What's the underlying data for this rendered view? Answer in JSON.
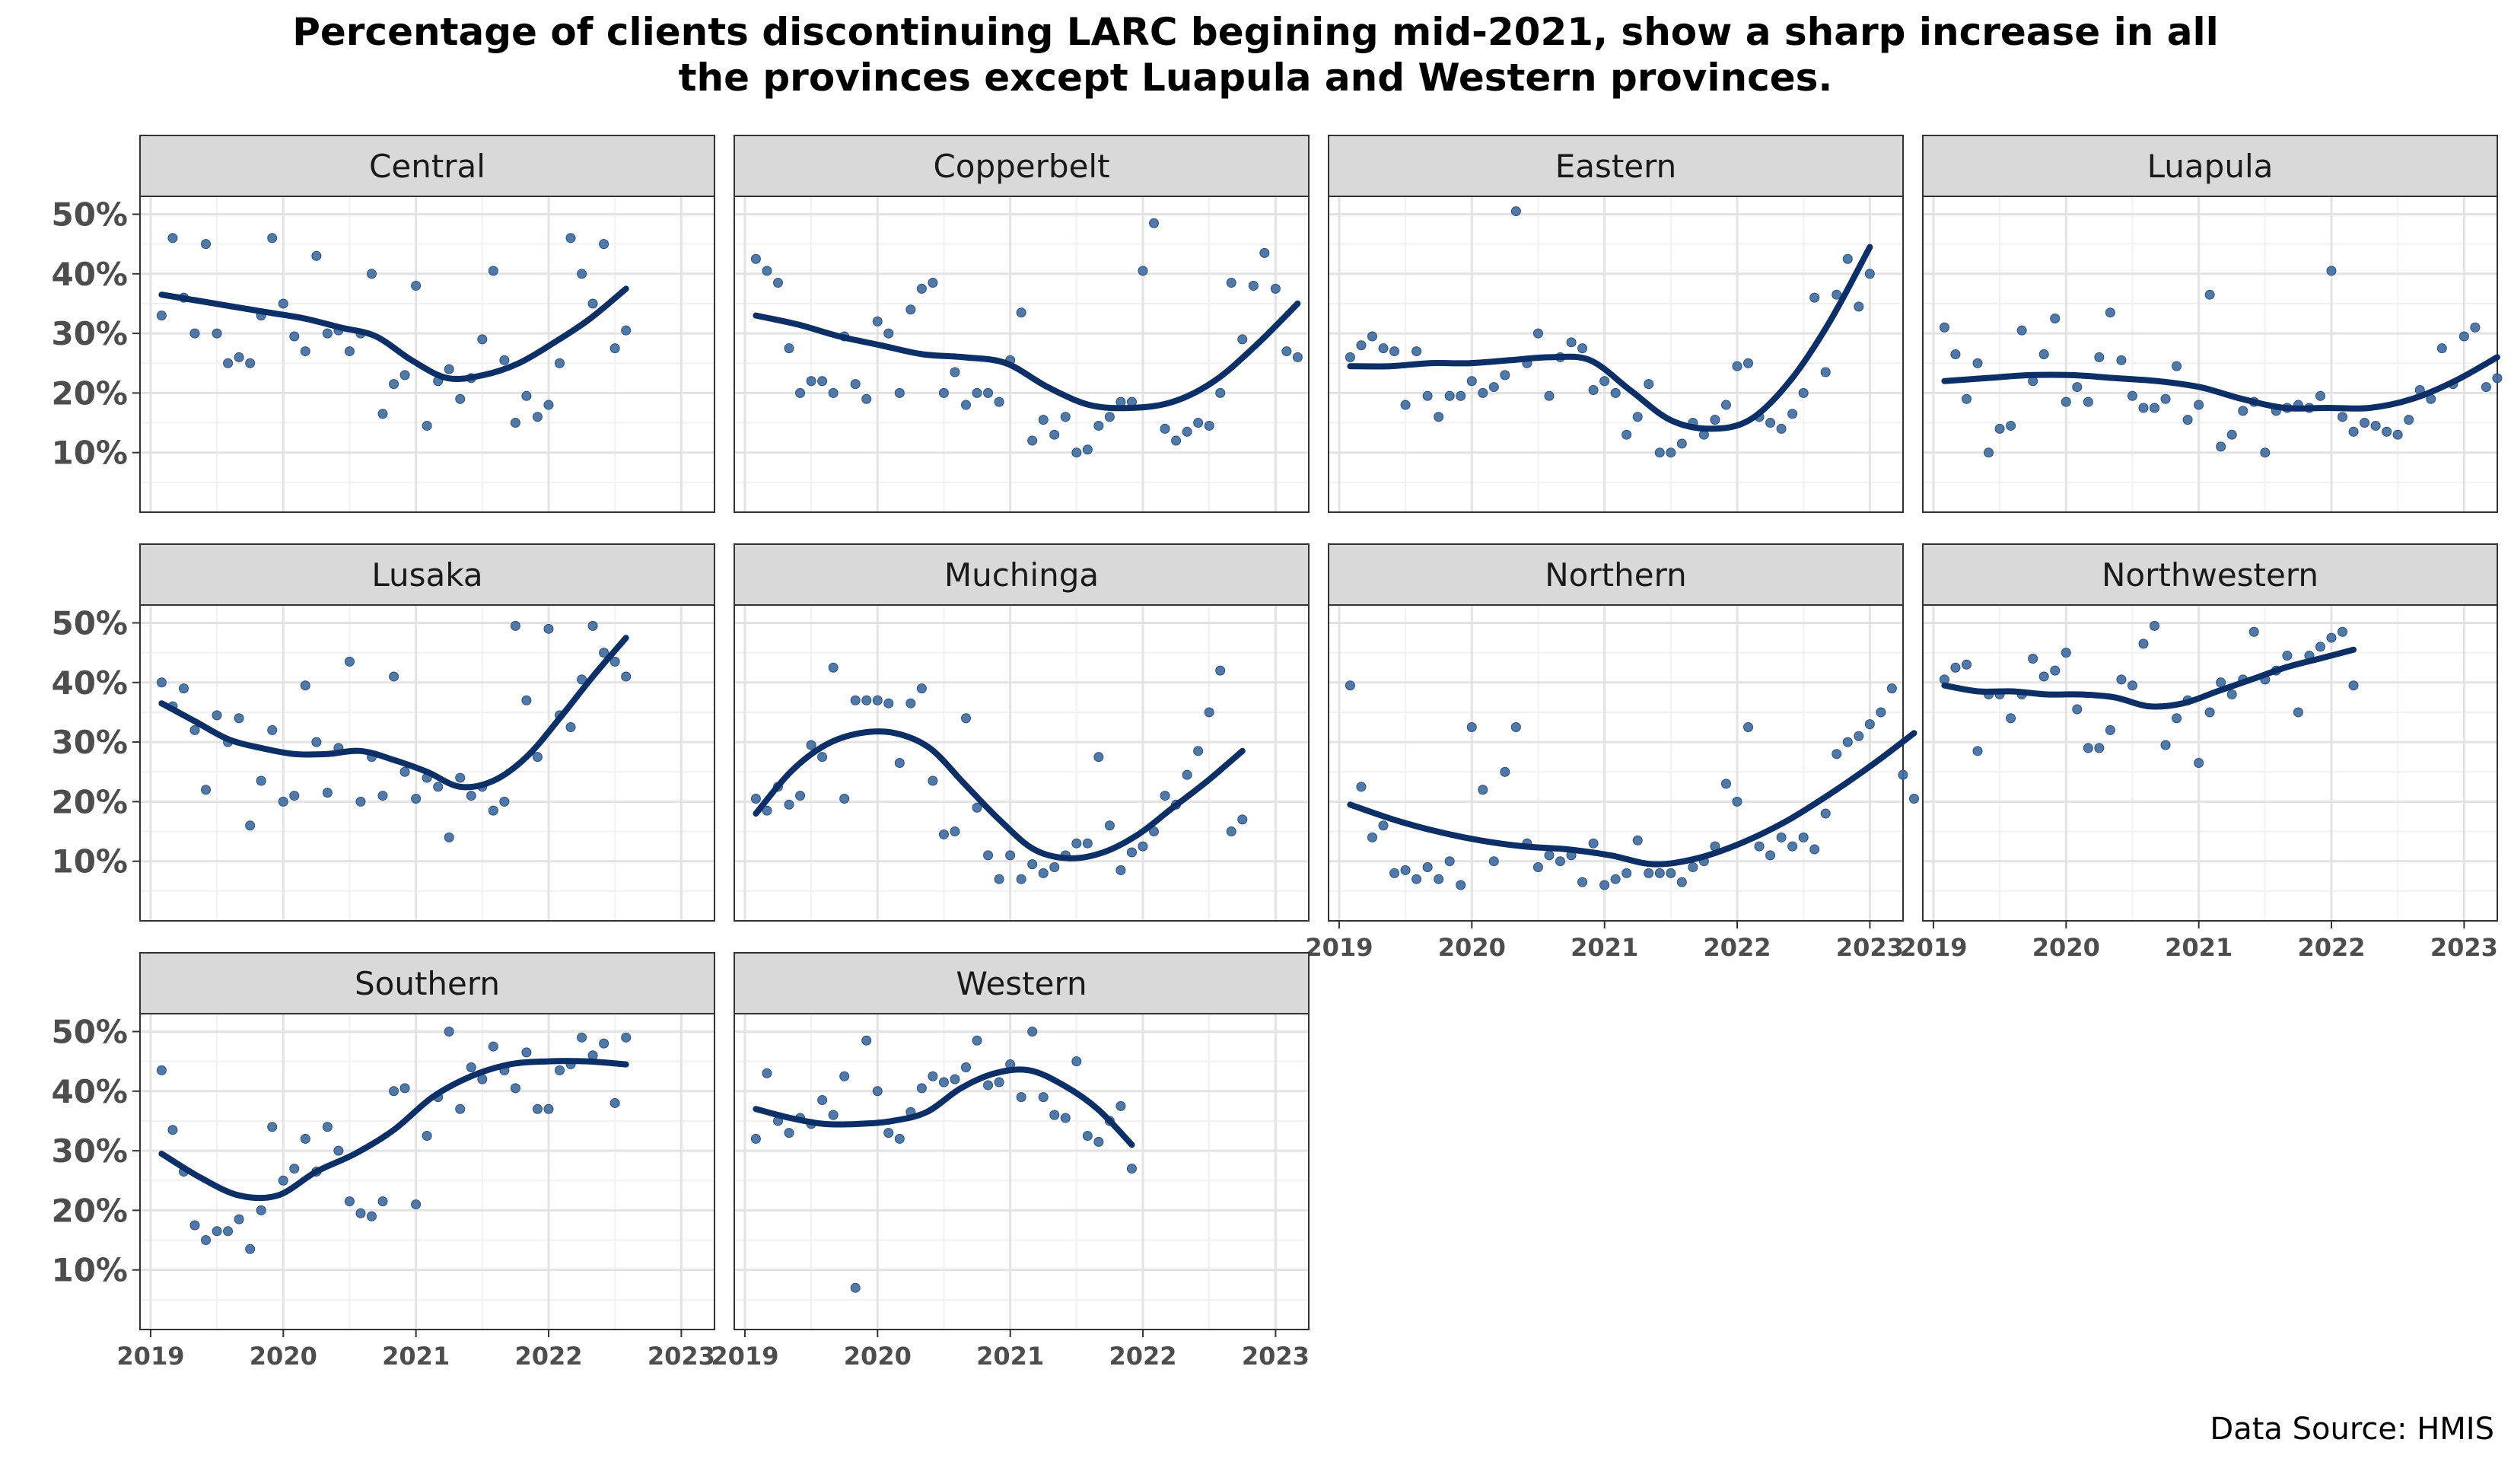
{
  "chart_data": {
    "type": "scatter",
    "title_line1": "Percentage of clients discontinuing LARC begining mid-2021, show a sharp increase in all",
    "title_line2": "the provinces except Luapula and  Western provinces.",
    "caption": "Data Source: HMIS",
    "xlabel": "",
    "ylabel": "",
    "x_ticks": [
      "2019",
      "2020",
      "2021",
      "2022",
      "2023"
    ],
    "y_ticks": [
      "10%",
      "20%",
      "30%",
      "40%",
      "50%"
    ],
    "xlim": [
      2018.92,
      2023.25
    ],
    "ylim": [
      0,
      53
    ],
    "grid": true,
    "panels": [
      {
        "name": "Central",
        "points": [
          33,
          46,
          36,
          30,
          45,
          30,
          25,
          26,
          25,
          33,
          46,
          35,
          29.5,
          27,
          43,
          30,
          30.5,
          27,
          30,
          40,
          16.5,
          21.5,
          23,
          38,
          14.5,
          22,
          24,
          19,
          22.5,
          29,
          40.5,
          25.5,
          15,
          19.5,
          16,
          18,
          25,
          46,
          40,
          35,
          45,
          27.5,
          30.5
        ],
        "trend": [
          36.5,
          35.5,
          34.5,
          33.5,
          32.5,
          31,
          29.5,
          25.5,
          22.5,
          23,
          25,
          28.5,
          32.5,
          37.5
        ]
      },
      {
        "name": "Copperbelt",
        "points": [
          42.5,
          40.5,
          38.5,
          27.5,
          20,
          22,
          22,
          20,
          29.5,
          21.5,
          19,
          32,
          30,
          20,
          34,
          37.5,
          38.5,
          20,
          23.5,
          18,
          20,
          20,
          18.5,
          25.5,
          33.5,
          12,
          15.5,
          13,
          16,
          10,
          10.5,
          14.5,
          16,
          18.5,
          18.5,
          40.5,
          48.5,
          14,
          12,
          13.5,
          15,
          14.5,
          20,
          38.5,
          29,
          38,
          43.5,
          37.5,
          27,
          26
        ],
        "trend": [
          33,
          31.5,
          29.5,
          28,
          26.5,
          26,
          25,
          21,
          18,
          17.5,
          18.5,
          22,
          28,
          35
        ]
      },
      {
        "name": "Eastern",
        "points": [
          26,
          28,
          29.5,
          27.5,
          27,
          18,
          27,
          19.5,
          16,
          19.5,
          19.5,
          22,
          20,
          21,
          23,
          50.5,
          25,
          30,
          19.5,
          26,
          28.5,
          27.5,
          20.5,
          22,
          20,
          13,
          16,
          21.5,
          10,
          10,
          11.5,
          15,
          13,
          15.5,
          18,
          24.5,
          25,
          16,
          15,
          14,
          16.5,
          20,
          36,
          23.5,
          36.5,
          42.5,
          34.5,
          40
        ],
        "trend": [
          24.5,
          24.5,
          25,
          25,
          25.5,
          26,
          25.5,
          20.5,
          15.5,
          14,
          15.5,
          22,
          32,
          44.5
        ]
      },
      {
        "name": "Luapula",
        "points": [
          31,
          26.5,
          19,
          25,
          10,
          14,
          14.5,
          30.5,
          22,
          26.5,
          32.5,
          18.5,
          21,
          18.5,
          26,
          33.5,
          25.5,
          19.5,
          17.5,
          17.5,
          19,
          24.5,
          15.5,
          18,
          36.5,
          11,
          13,
          17,
          18.5,
          10,
          17,
          17.5,
          18,
          17.5,
          19.5,
          40.5,
          16,
          13.5,
          15,
          14.5,
          13.5,
          13,
          15.5,
          20.5,
          19,
          27.5,
          21.5,
          29.5,
          31,
          21,
          22.5
        ],
        "trend": [
          22,
          22.5,
          23,
          23,
          22.5,
          22,
          21,
          19,
          17.5,
          17.5,
          17.5,
          19,
          22,
          26
        ]
      },
      {
        "name": "Lusaka",
        "points": [
          40,
          36,
          39,
          32,
          22,
          34.5,
          30,
          34,
          16,
          23.5,
          32,
          20,
          21,
          39.5,
          30,
          21.5,
          29,
          43.5,
          20,
          27.5,
          21,
          41,
          25,
          20.5,
          24,
          22.5,
          14,
          24,
          21,
          22.5,
          18.5,
          20,
          49.5,
          37,
          27.5,
          49,
          34.5,
          32.5,
          40.5,
          49.5,
          45,
          43.5,
          41
        ],
        "trend": [
          36.5,
          33.5,
          30.5,
          29,
          28,
          28,
          28.5,
          27,
          25,
          22.5,
          23.5,
          27.5,
          34,
          41,
          47.5
        ]
      },
      {
        "name": "Muchinga",
        "points": [
          20.5,
          18.5,
          22.5,
          19.5,
          21,
          29.5,
          27.5,
          42.5,
          20.5,
          37,
          37,
          37,
          36.5,
          26.5,
          36.5,
          39,
          23.5,
          14.5,
          15,
          34,
          19,
          11,
          7,
          11,
          7,
          9.5,
          8,
          9,
          11,
          13,
          13,
          27.5,
          16,
          8.5,
          11.5,
          12.5,
          15,
          21,
          19.5,
          24.5,
          28.5,
          35,
          42,
          15,
          17
        ],
        "trend": [
          18,
          25,
          29.5,
          31.5,
          31.5,
          29,
          23,
          17,
          12,
          10.5,
          11.5,
          14.5,
          19,
          23.5,
          28.5
        ]
      },
      {
        "name": "Northern",
        "points": [
          39.5,
          22.5,
          14,
          16,
          8,
          8.5,
          7,
          9,
          7,
          10,
          6,
          32.5,
          22,
          10,
          25,
          32.5,
          13,
          9,
          11,
          10,
          11,
          6.5,
          13,
          6,
          7,
          8,
          13.5,
          8,
          8,
          8,
          6.5,
          9,
          10,
          12.5,
          23,
          20,
          32.5,
          12.5,
          11,
          14,
          12.5,
          14,
          12,
          18,
          28,
          30,
          31,
          33,
          35,
          39,
          24.5,
          20.5
        ],
        "trend": [
          19.5,
          17,
          15,
          13.5,
          12.5,
          12,
          11,
          9.5,
          10.5,
          13,
          16.5,
          21,
          26,
          31.5
        ]
      },
      {
        "name": "Northwestern",
        "points": [
          40.5,
          42.5,
          43,
          28.5,
          38,
          38,
          34,
          38,
          44,
          41,
          42,
          45,
          35.5,
          29,
          29,
          32,
          40.5,
          39.5,
          46.5,
          49.5,
          29.5,
          34,
          37,
          26.5,
          35,
          40,
          38,
          40.5,
          48.5,
          40.5,
          42,
          44.5,
          35,
          44.5,
          46,
          47.5,
          48.5,
          39.5
        ],
        "trend": [
          39.5,
          38.5,
          38.5,
          38,
          38,
          37.5,
          36,
          36.5,
          38.5,
          40.5,
          42.5,
          44,
          45.5
        ]
      },
      {
        "name": "Southern",
        "points": [
          43.5,
          33.5,
          26.5,
          17.5,
          15,
          16.5,
          16.5,
          18.5,
          13.5,
          20,
          34,
          25,
          27,
          32,
          26.5,
          34,
          30,
          21.5,
          19.5,
          19,
          21.5,
          40,
          40.5,
          21,
          32.5,
          39,
          50,
          37,
          44,
          42,
          47.5,
          43.5,
          40.5,
          46.5,
          37,
          37,
          43.5,
          44.5,
          49,
          46,
          48,
          38,
          49
        ],
        "trend": [
          29.5,
          25.5,
          22.5,
          22.5,
          26.5,
          29.5,
          33.5,
          39,
          42.5,
          44.5,
          45,
          45,
          44.5
        ]
      },
      {
        "name": "Western",
        "points": [
          32,
          43,
          35,
          33,
          35.5,
          34.5,
          38.5,
          36,
          42.5,
          7,
          48.5,
          40,
          33,
          32,
          36.5,
          40.5,
          42.5,
          41.5,
          42,
          44,
          48.5,
          41,
          41.5,
          44.5,
          39,
          50,
          39,
          36,
          35.5,
          45,
          32.5,
          31.5,
          35,
          37.5,
          27
        ],
        "trend": [
          37,
          35.5,
          34.5,
          34.5,
          35,
          36.5,
          40.5,
          43,
          43.5,
          41,
          37,
          31
        ]
      }
    ],
    "colors": {
      "points": "#3E6A9E",
      "trend": "#0B2F66",
      "strip_fill": "#D9D9D9",
      "grid_major": "#E3E3E3",
      "grid_minor": "#F1F1F1",
      "panel_border": "#333333"
    }
  }
}
